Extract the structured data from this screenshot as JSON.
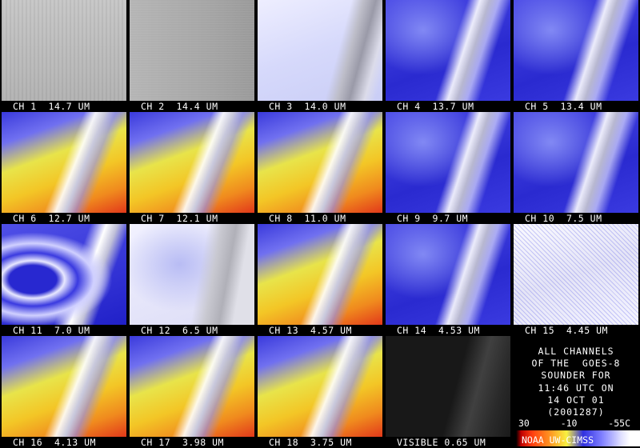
{
  "panels": [
    "CH 1  14.7 UM",
    "CH 2  14.4 UM",
    "CH 3  14.0 UM",
    "CH 4  13.7 UM",
    "CH 5  13.4 UM",
    "CH 6  12.7 UM",
    "CH 7  12.1 UM",
    "CH 8  11.0 UM",
    "CH 9  9.7 UM",
    "CH 10  7.5 UM",
    "CH 11  7.0 UM",
    "CH 12  6.5 UM",
    "CH 13  4.57 UM",
    "CH 14  4.53 UM",
    "CH 15  4.45 UM",
    "CH 16  4.13 UM",
    "CH 17  3.98 UM",
    "CH 18  3.75 UM",
    "VISIBLE 0.65 UM"
  ],
  "info": [
    "ALL CHANNELS",
    "OF THE  GOES-8",
    "SOUNDER FOR",
    "11:46 UTC ON",
    "14 OCT 01",
    "(2001287)"
  ],
  "colorbar": {
    "labels": [
      "30",
      "-10",
      "-55C"
    ],
    "credit": "NOAA UW-CIMSS"
  }
}
